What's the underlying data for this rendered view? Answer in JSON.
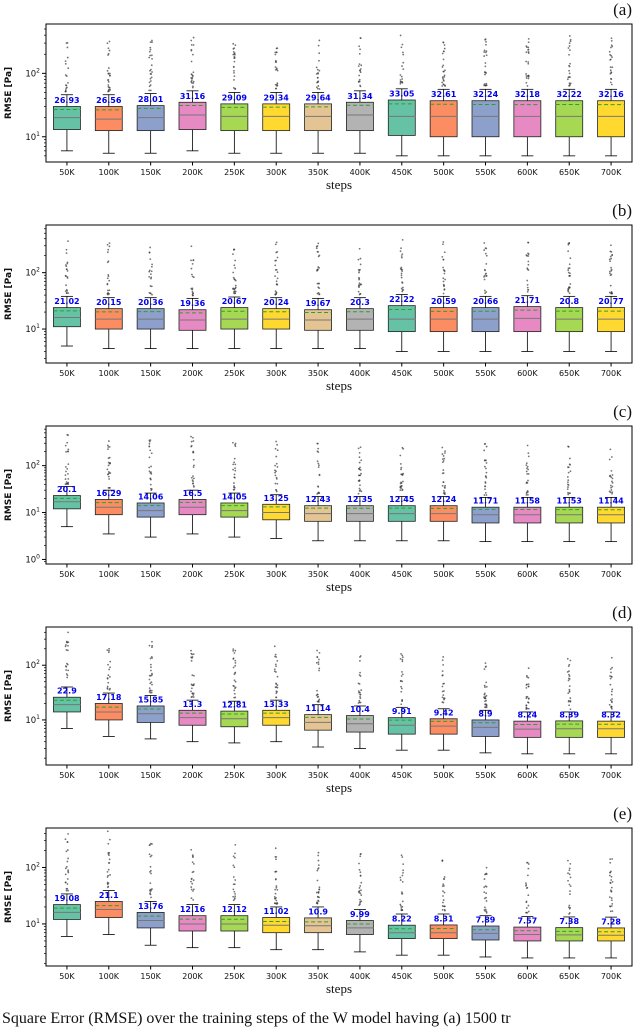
{
  "figure": {
    "caption": "Square Error (RMSE) over the training steps of the W model having (a) 1500 tr",
    "xlabel": "steps",
    "ylabel": "RMSE [Pa]",
    "palette": [
      "#66c2a5",
      "#fc8d62",
      "#8da0cb",
      "#e78ac3",
      "#a6d854",
      "#ffd92f",
      "#e5c494",
      "#b3b3b3"
    ],
    "mean_line_color": "#2ca02c",
    "median_line_color": "#777777",
    "mean_label_color": "#0000ee",
    "box_edge_color": "#222222"
  },
  "chart_data": [
    {
      "type": "boxplot",
      "panel_label": "(a)",
      "xlabel": "steps",
      "ylabel": "RMSE [Pa]",
      "y_scale": "log",
      "ylim": [
        4,
        600
      ],
      "yticks": [
        10,
        100
      ],
      "categories": [
        "50K",
        "100K",
        "150K",
        "200K",
        "250K",
        "300K",
        "350K",
        "400K",
        "450K",
        "500K",
        "550K",
        "600K",
        "650K",
        "700K"
      ],
      "mean_labels": [
        "26.93",
        "26.56",
        "28.01",
        "31.16",
        "29.09",
        "29.34",
        "29.64",
        "31.34",
        "33.05",
        "32.61",
        "32.24",
        "32.18",
        "32.22",
        "32.16"
      ],
      "q1": [
        13,
        12.5,
        12.5,
        13,
        12.5,
        12.5,
        12.5,
        12.5,
        10.5,
        10,
        10,
        10,
        10,
        10
      ],
      "median": [
        20,
        19,
        20,
        22,
        21,
        21,
        21,
        22,
        21,
        21,
        21,
        21,
        21,
        21
      ],
      "q3": [
        30,
        30,
        31,
        35,
        33,
        33,
        33,
        35,
        38,
        37,
        37,
        37,
        37,
        37
      ],
      "whisker_low": [
        6,
        5.5,
        5.5,
        6,
        5.5,
        5.5,
        5.5,
        5.5,
        5,
        5,
        5,
        5,
        5,
        5
      ],
      "whisker_high": [
        46,
        46,
        48,
        53,
        50,
        50,
        50,
        53,
        57,
        56,
        56,
        56,
        56,
        56
      ],
      "flier_mult": 7
    },
    {
      "type": "boxplot",
      "panel_label": "(b)",
      "xlabel": "steps",
      "ylabel": "RMSE [Pa]",
      "y_scale": "log",
      "ylim": [
        2.5,
        700
      ],
      "yticks": [
        10,
        100
      ],
      "categories": [
        "50K",
        "100K",
        "150K",
        "200K",
        "250K",
        "300K",
        "350K",
        "400K",
        "450K",
        "500K",
        "550K",
        "600K",
        "650K",
        "700K"
      ],
      "mean_labels": [
        "21.02",
        "20.15",
        "20.36",
        "19.36",
        "20.67",
        "20.24",
        "19.67",
        "20.3",
        "22.22",
        "20.59",
        "20.66",
        "21.71",
        "20.8",
        "20.77"
      ],
      "q1": [
        11,
        10,
        10,
        9.5,
        10,
        10,
        9.5,
        9.5,
        9,
        9,
        9,
        9,
        9,
        9
      ],
      "median": [
        16,
        15,
        15,
        14.5,
        15,
        15,
        14.5,
        15,
        15,
        15,
        15,
        15.5,
        15,
        15
      ],
      "q3": [
        24,
        23,
        23,
        22,
        24,
        23,
        22,
        23,
        26,
        24,
        24,
        25,
        24,
        24
      ],
      "whisker_low": [
        5,
        4.5,
        4.5,
        4.5,
        4.5,
        4.5,
        4.5,
        4.5,
        4,
        4,
        4,
        4,
        4,
        4
      ],
      "whisker_high": [
        38,
        36,
        36,
        35,
        37,
        36,
        35,
        36,
        41,
        38,
        38,
        39,
        38,
        38
      ],
      "flier_mult": 10
    },
    {
      "type": "boxplot",
      "panel_label": "(c)",
      "xlabel": "steps",
      "ylabel": "RMSE [Pa]",
      "y_scale": "log",
      "ylim": [
        0.8,
        700
      ],
      "yticks": [
        1,
        10,
        100
      ],
      "categories": [
        "50K",
        "100K",
        "150K",
        "200K",
        "250K",
        "300K",
        "350K",
        "400K",
        "450K",
        "500K",
        "550K",
        "600K",
        "650K",
        "700K"
      ],
      "mean_labels": [
        "20.1",
        "16.29",
        "14.06",
        "16.5",
        "14.05",
        "13.25",
        "12.43",
        "12.35",
        "12.45",
        "12.24",
        "11.71",
        "11.58",
        "11.53",
        "11.44"
      ],
      "q1": [
        12,
        9,
        8,
        9,
        8,
        7,
        6.5,
        6.5,
        6.5,
        6.5,
        6,
        6,
        6,
        6
      ],
      "median": [
        17,
        13,
        11,
        13,
        11,
        10,
        9.5,
        9.5,
        9.5,
        9.5,
        9,
        9,
        9,
        9
      ],
      "q3": [
        23,
        19,
        16,
        19,
        16,
        15,
        14,
        14,
        14,
        14,
        13,
        13,
        13,
        13
      ],
      "whisker_low": [
        5,
        3.5,
        3,
        3.5,
        3,
        2.8,
        2.5,
        2.5,
        2.5,
        2.5,
        2.4,
        2.4,
        2.4,
        2.4
      ],
      "whisker_high": [
        36,
        30,
        26,
        30,
        26,
        24,
        22,
        22,
        22,
        22,
        21,
        21,
        21,
        21
      ],
      "flier_mult": 14
    },
    {
      "type": "boxplot",
      "panel_label": "(d)",
      "xlabel": "steps",
      "ylabel": "RMSE [Pa]",
      "y_scale": "log",
      "ylim": [
        1.5,
        500
      ],
      "yticks": [
        10,
        100
      ],
      "categories": [
        "50K",
        "100K",
        "150K",
        "200K",
        "250K",
        "300K",
        "350K",
        "400K",
        "450K",
        "500K",
        "550K",
        "600K",
        "650K",
        "700K"
      ],
      "mean_labels": [
        "22.9",
        "17.18",
        "15.85",
        "13.3",
        "12.81",
        "13.33",
        "11.14",
        "10.4",
        "9.91",
        "9.42",
        "8.9",
        "8.24",
        "8.39",
        "8.32"
      ],
      "q1": [
        14,
        10,
        9,
        8,
        7.5,
        8,
        6.5,
        6,
        5.5,
        5.5,
        5,
        4.8,
        4.8,
        4.8
      ],
      "median": [
        19,
        14,
        13,
        11,
        10.5,
        11,
        9,
        8.5,
        8,
        7.7,
        7.3,
        6.8,
        6.9,
        6.9
      ],
      "q3": [
        26,
        20,
        18,
        15,
        14.5,
        15,
        12.5,
        12,
        11,
        10.5,
        10,
        9.5,
        9.6,
        9.5
      ],
      "whisker_low": [
        7,
        5,
        4.5,
        4,
        3.8,
        4,
        3.2,
        3,
        2.8,
        2.8,
        2.5,
        2.4,
        2.4,
        2.4
      ],
      "whisker_high": [
        40,
        31,
        28,
        23,
        22,
        23,
        19,
        18,
        17,
        16,
        15,
        14,
        14,
        14
      ],
      "flier_mult": 10
    },
    {
      "type": "boxplot",
      "panel_label": "(e)",
      "xlabel": "steps",
      "ylabel": "RMSE [Pa]",
      "y_scale": "log",
      "ylim": [
        1.8,
        500
      ],
      "yticks": [
        10,
        100
      ],
      "categories": [
        "50K",
        "100K",
        "150K",
        "200K",
        "250K",
        "300K",
        "350K",
        "400K",
        "450K",
        "500K",
        "550K",
        "600K",
        "650K",
        "700K"
      ],
      "mean_labels": [
        "19.08",
        "21.1",
        "13.76",
        "12.16",
        "12.12",
        "11.02",
        "10.9",
        "9.99",
        "8.22",
        "8.31",
        "7.89",
        "7.57",
        "7.38",
        "7.28"
      ],
      "q1": [
        12,
        13,
        8.5,
        7.5,
        7.5,
        7,
        7,
        6.5,
        5.5,
        5.5,
        5.2,
        5,
        5,
        5
      ],
      "median": [
        16,
        18,
        11.5,
        10,
        10,
        9.5,
        9.3,
        8.5,
        7,
        7,
        6.8,
        6.5,
        6.4,
        6.3
      ],
      "q3": [
        22,
        25,
        16,
        14,
        14,
        13,
        12.8,
        11.5,
        9.5,
        9.6,
        9.2,
        8.8,
        8.6,
        8.5
      ],
      "whisker_low": [
        6,
        6.5,
        4.2,
        3.8,
        3.8,
        3.5,
        3.5,
        3.2,
        2.8,
        2.8,
        2.6,
        2.5,
        2.5,
        2.5
      ],
      "whisker_high": [
        34,
        39,
        25,
        22,
        22,
        20,
        20,
        18,
        15,
        15,
        14,
        13.5,
        13.3,
        13.2
      ],
      "flier_mult": 12
    }
  ]
}
